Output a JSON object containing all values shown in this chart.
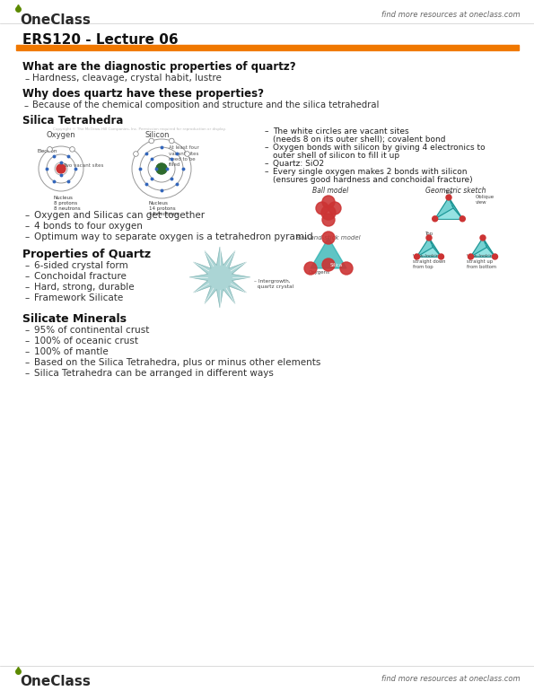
{
  "bg_color": "#ffffff",
  "header_tagline": "find more resources at oneclass.com",
  "oneclass_green": "#5c8a00",
  "orange_bar_color": "#f07800",
  "title": "ERS120 - Lecture 06",
  "silica_bullets_right": [
    "- The white circles are vacant sites",
    "  (needs 8 on its outer shell); covalent bond",
    "- Oxygen bonds with silicon by giving 4 electronics to",
    "  outer shell of silicon to fill it up",
    "- Quartz: SiO2",
    "- Every single oxygen makes 2 bonds with silicon",
    "  (ensures good hardness and conchoidal fracture)"
  ],
  "silica_lower_bullets": [
    "Oxygen and Silicas can get together",
    "4 bonds to four oxygen",
    "Optimum way to separate oxygen is a tetrahedron pyramid"
  ],
  "quartz_bullets": [
    "6-sided crystal form",
    "Conchoidal fracture",
    "Hard, strong, durable",
    "Framework Silicate"
  ],
  "silicate_bullets": [
    "95% of continental crust",
    "100% of oceanic crust",
    "100% of mantle",
    "Based on the Silica Tetrahedra, plus or minus other elements",
    "Silica Tetrahedra can be arranged in different ways"
  ]
}
